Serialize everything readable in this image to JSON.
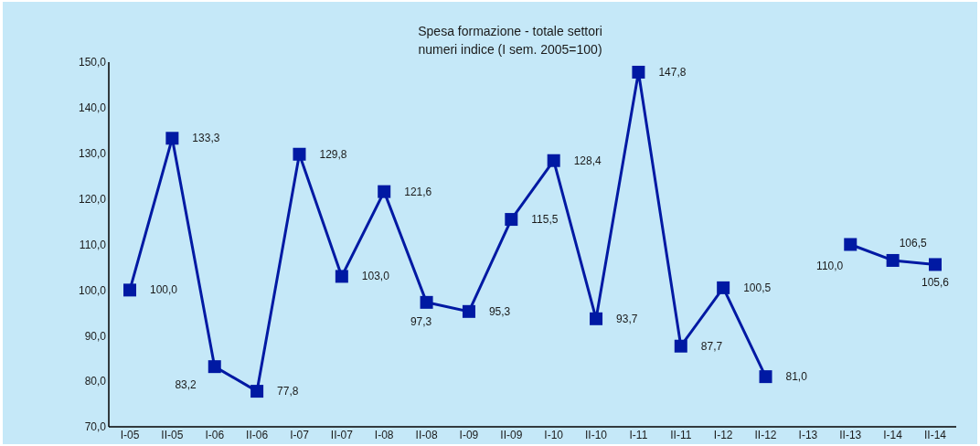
{
  "chart_data": {
    "type": "line",
    "title": "Spesa formazione - totale settori",
    "subtitle": "numeri indice (I sem. 2005=100)",
    "categories": [
      "I-05",
      "II-05",
      "I-06",
      "II-06",
      "I-07",
      "II-07",
      "I-08",
      "II-08",
      "I-09",
      "II-09",
      "I-10",
      "II-10",
      "I-11",
      "II-11",
      "I-12",
      "II-12",
      "I-13",
      "II-13",
      "I-14",
      "II-14"
    ],
    "series": [
      {
        "color": "#0019a3",
        "values": [
          100.0,
          133.3,
          83.2,
          77.8,
          129.8,
          103.0,
          121.6,
          97.3,
          95.3,
          115.5,
          128.4,
          93.7,
          147.8,
          87.7,
          100.5,
          81.0,
          null,
          110.0,
          106.5,
          105.6
        ],
        "value_labels": [
          "100,0",
          "133,3",
          "83,2",
          "77,8",
          "129,8",
          "103,0",
          "121,6",
          "97,3",
          "95,3",
          "115,5",
          "128,4",
          "93,7",
          "147,8",
          "87,7",
          "100,5",
          "81,0",
          null,
          "110,0",
          "106,5",
          "105,6"
        ]
      }
    ],
    "ylim": [
      70,
      150
    ],
    "yticks": [
      {
        "value": 70,
        "label": "70,0"
      },
      {
        "value": 80,
        "label": "80,0"
      },
      {
        "value": 90,
        "label": "90,0"
      },
      {
        "value": 100,
        "label": "100,0"
      },
      {
        "value": 110,
        "label": "110,0"
      },
      {
        "value": 120,
        "label": "120,0"
      },
      {
        "value": 130,
        "label": "130,0"
      },
      {
        "value": 140,
        "label": "140,0"
      },
      {
        "value": 150,
        "label": "150,0"
      }
    ],
    "marker": "square",
    "line_style": "solid",
    "grid": false,
    "legend": false
  }
}
